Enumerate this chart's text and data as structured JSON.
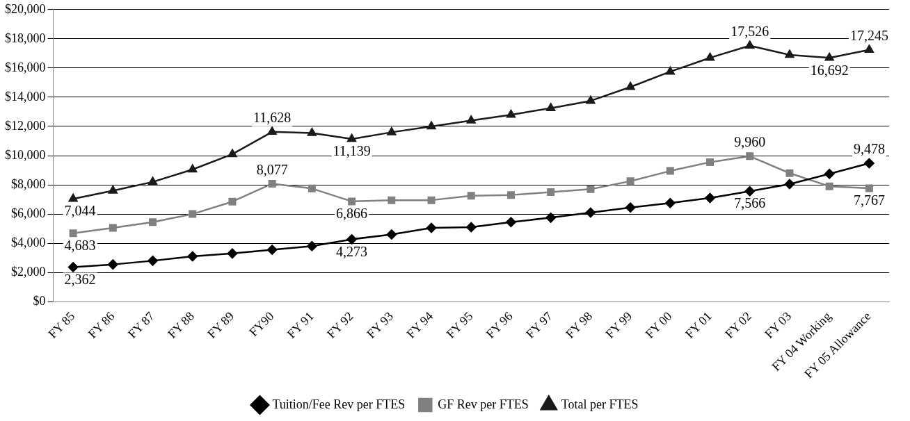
{
  "chart_data": {
    "type": "line",
    "categories": [
      "FY 85",
      "FY 86",
      "FY 87",
      "FY 88",
      "FY 89",
      "FY90",
      "FY 91",
      "FY 92",
      "FY 93",
      "FY 94",
      "FY 95",
      "FY 96",
      "FY 97",
      "FY 98",
      "FY 99",
      "FY 00",
      "FY 01",
      "FY 02",
      "FY 03",
      "FY 04 Working",
      "FY 05 Allowance"
    ],
    "series": [
      {
        "name": "Tuition/Fee Rev per FTES",
        "color": "#000000",
        "marker": "diamond",
        "values": [
          2362,
          2550,
          2800,
          3100,
          3300,
          3550,
          3800,
          4273,
          4600,
          5050,
          5100,
          5450,
          5750,
          6100,
          6450,
          6750,
          7100,
          7566,
          8050,
          8750,
          9478
        ],
        "value_labels": [
          "2,362",
          null,
          null,
          null,
          null,
          null,
          null,
          "4,273",
          null,
          null,
          null,
          null,
          null,
          null,
          null,
          null,
          null,
          "7,566",
          null,
          null,
          "9,478"
        ]
      },
      {
        "name": "GF Rev per FTES",
        "color": "#808080",
        "marker": "square",
        "values": [
          4683,
          5050,
          5450,
          6000,
          6850,
          8077,
          7750,
          6866,
          6950,
          6950,
          7250,
          7300,
          7500,
          7700,
          8250,
          8950,
          9550,
          9960,
          8800,
          7900,
          7767
        ],
        "value_labels": [
          "4,683",
          null,
          null,
          null,
          null,
          "8,077",
          null,
          "6,866",
          null,
          null,
          null,
          null,
          null,
          null,
          null,
          null,
          null,
          "9,960",
          null,
          null,
          "7,767"
        ]
      },
      {
        "name": "Total per FTES",
        "color": "#1a1a1a",
        "marker": "triangle",
        "values": [
          7044,
          7600,
          8200,
          9050,
          10100,
          11628,
          11550,
          11139,
          11600,
          12000,
          12400,
          12800,
          13250,
          13750,
          14700,
          15750,
          16700,
          17526,
          16900,
          16692,
          17245
        ],
        "value_labels": [
          "7,044",
          null,
          null,
          null,
          null,
          "11,628",
          null,
          "11,139",
          null,
          null,
          null,
          null,
          null,
          null,
          null,
          null,
          null,
          "17,526",
          null,
          "16,692",
          "17,245"
        ]
      }
    ],
    "ylim": [
      0,
      20000
    ],
    "yticks": [
      {
        "value": 0,
        "label": "$0"
      },
      {
        "value": 2000,
        "label": "$2,000"
      },
      {
        "value": 4000,
        "label": "$4,000"
      },
      {
        "value": 6000,
        "label": "$6,000"
      },
      {
        "value": 8000,
        "label": "$8,000"
      },
      {
        "value": 10000,
        "label": "$10,000"
      },
      {
        "value": 12000,
        "label": "$12,000"
      },
      {
        "value": 14000,
        "label": "$14,000"
      },
      {
        "value": 16000,
        "label": "$16,000"
      },
      {
        "value": 18000,
        "label": "$18,000"
      },
      {
        "value": 20000,
        "label": "$20,000"
      }
    ],
    "grid": "y",
    "legend": "bottom",
    "line_style": "solid"
  }
}
